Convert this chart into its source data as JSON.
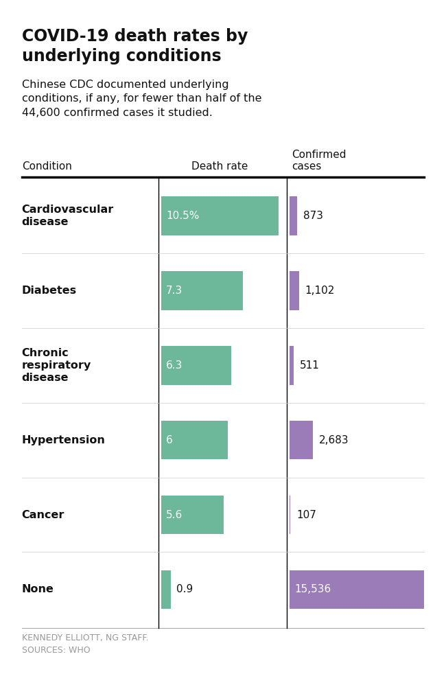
{
  "title": "COVID-19 death rates by\nunderlying conditions",
  "subtitle": "Chinese CDC documented underlying\nconditions, if any, for fewer than half of the\n44,600 confirmed cases it studied.",
  "col_condition": "Condition",
  "col_death": "Death rate",
  "col_cases": "Confirmed\ncases",
  "conditions": [
    "Cardiovascular\ndisease",
    "Diabetes",
    "Chronic\nrespiratory\ndisease",
    "Hypertension",
    "Cancer",
    "None"
  ],
  "death_rates": [
    10.5,
    7.3,
    6.3,
    6.0,
    5.6,
    0.9
  ],
  "death_labels": [
    "10.5%",
    "7.3",
    "6.3",
    "6",
    "5.6",
    "0.9"
  ],
  "confirmed_cases": [
    873,
    1102,
    511,
    2683,
    107,
    15536
  ],
  "confirmed_labels": [
    "873",
    "1,102",
    "511",
    "2,683",
    "107",
    "15,536"
  ],
  "green_color": "#6db89a",
  "purple_color": "#9b7bb8",
  "background_color": "#ffffff",
  "text_color": "#111111",
  "footer_text": "KENNEDY ELLIOTT, NG STAFF.\nSOURCES: WHO",
  "death_max": 10.5,
  "cases_max": 15536,
  "death_label_inside": [
    true,
    true,
    true,
    true,
    true,
    false
  ],
  "cases_label_inside": [
    false,
    false,
    false,
    false,
    false,
    true
  ]
}
